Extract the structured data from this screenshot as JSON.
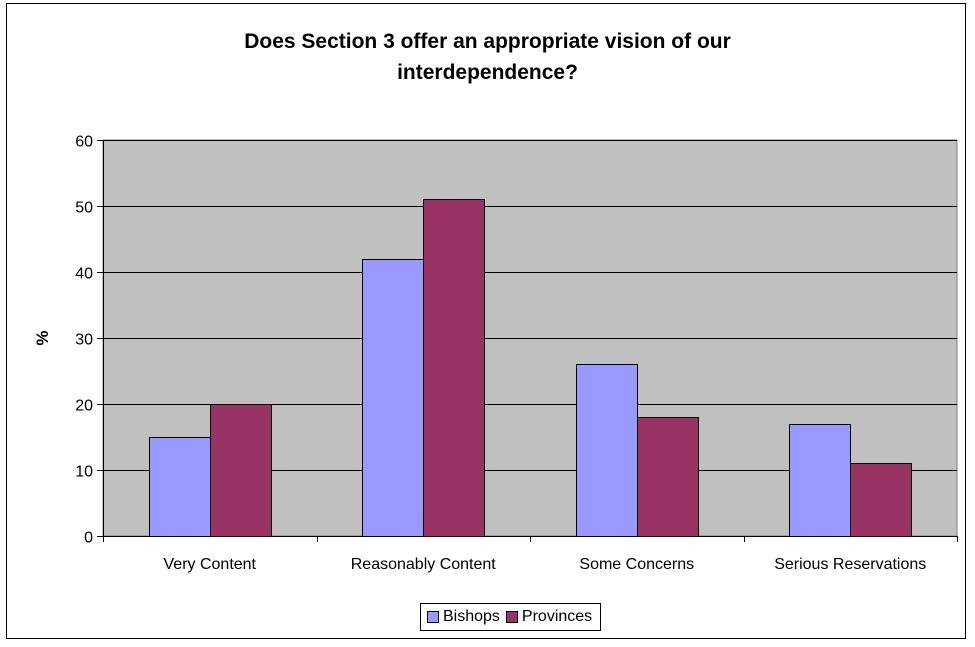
{
  "chart_data": {
    "type": "bar",
    "title_lines": [
      "Does Section 3 offer an appropriate vision of our",
      "interdependence?"
    ],
    "xlabel": "",
    "ylabel": "%",
    "ylim": [
      0,
      60
    ],
    "yticks": [
      0,
      10,
      20,
      30,
      40,
      50,
      60
    ],
    "grid": true,
    "legend_position": "bottom",
    "categories": [
      "Very Content",
      "Reasonably Content",
      "Some Concerns",
      "Serious Reservations"
    ],
    "series": [
      {
        "name": "Bishops",
        "color": "#9999ff",
        "values": [
          15,
          42,
          26,
          17
        ]
      },
      {
        "name": "Provinces",
        "color": "#993366",
        "values": [
          20,
          51,
          18,
          11
        ]
      }
    ],
    "plot_background": "#c0c0c0"
  }
}
